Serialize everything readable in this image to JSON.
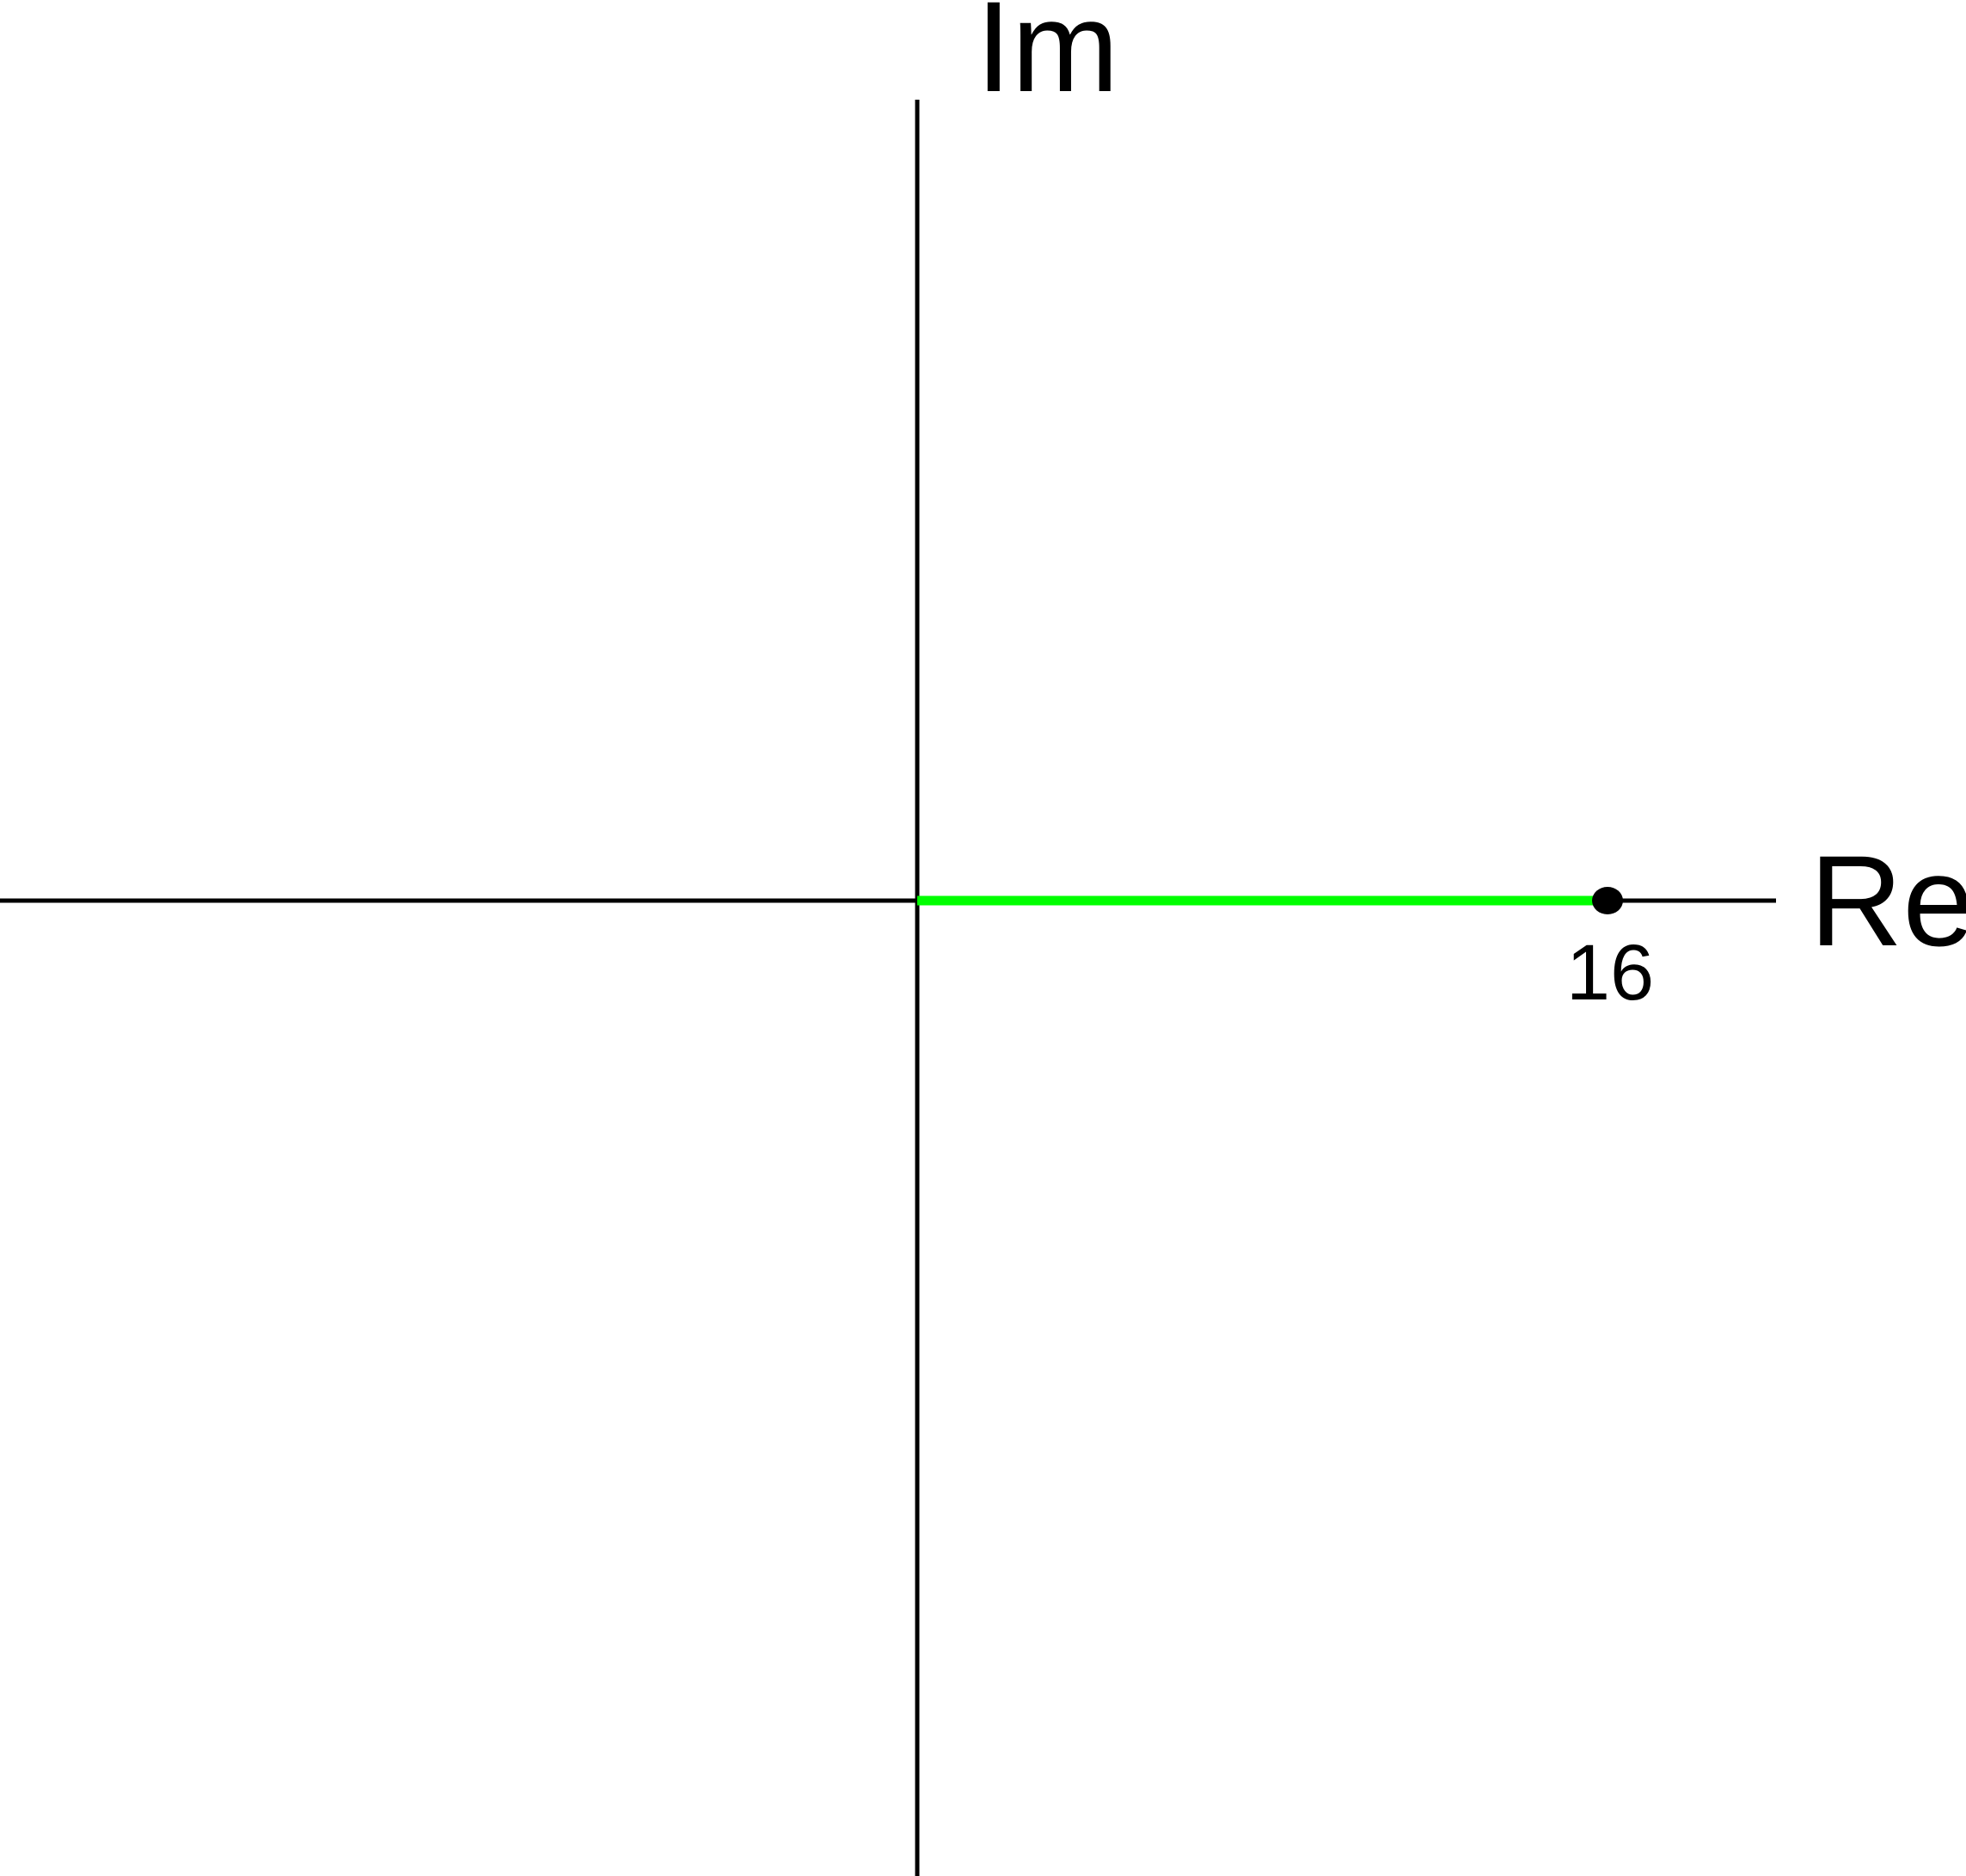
{
  "axes": {
    "imaginary_label": "Im",
    "real_label": "Re"
  },
  "segment": {
    "start": 0,
    "end": 16,
    "end_label": "16"
  },
  "colors": {
    "axis": "#000000",
    "segment": "#00ff00",
    "point": "#000000"
  }
}
